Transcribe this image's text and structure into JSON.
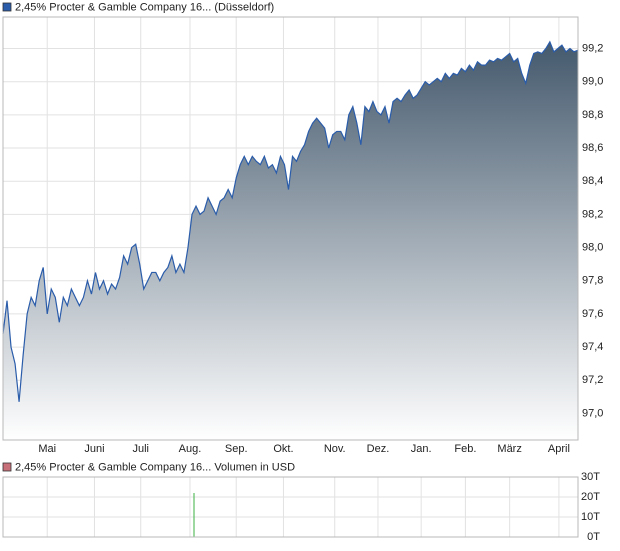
{
  "chart_data": [
    {
      "type": "area",
      "series": [
        {
          "name": "2,45% Procter & Gamble Company 16... (Düsseldorf)",
          "color": "#2a5caa",
          "values": [
            97.48,
            97.68,
            97.4,
            97.3,
            97.07,
            97.35,
            97.6,
            97.7,
            97.65,
            97.8,
            97.88,
            97.6,
            97.75,
            97.7,
            97.55,
            97.7,
            97.65,
            97.75,
            97.7,
            97.65,
            97.7,
            97.8,
            97.72,
            97.85,
            97.75,
            97.8,
            97.72,
            97.78,
            97.75,
            97.82,
            97.95,
            97.9,
            98.0,
            98.02,
            97.9,
            97.75,
            97.8,
            97.85,
            97.85,
            97.8,
            97.85,
            97.88,
            97.95,
            97.85,
            97.9,
            97.85,
            98.0,
            98.2,
            98.25,
            98.2,
            98.22,
            98.3,
            98.25,
            98.2,
            98.28,
            98.3,
            98.35,
            98.3,
            98.42,
            98.5,
            98.55,
            98.5,
            98.55,
            98.52,
            98.5,
            98.55,
            98.48,
            98.5,
            98.45,
            98.55,
            98.5,
            98.35,
            98.55,
            98.52,
            98.58,
            98.62,
            98.7,
            98.75,
            98.78,
            98.75,
            98.72,
            98.6,
            98.68,
            98.7,
            98.7,
            98.65,
            98.8,
            98.85,
            98.75,
            98.62,
            98.85,
            98.82,
            98.88,
            98.82,
            98.8,
            98.85,
            98.75,
            98.88,
            98.9,
            98.88,
            98.92,
            98.95,
            98.9,
            98.92,
            98.96,
            99.0,
            98.98,
            99.0,
            99.02,
            99.0,
            99.05,
            99.02,
            99.05,
            99.04,
            99.08,
            99.06,
            99.1,
            99.07,
            99.12,
            99.1,
            99.1,
            99.13,
            99.12,
            99.14,
            99.13,
            99.15,
            99.17,
            99.12,
            99.14,
            99.05,
            98.99,
            99.1,
            99.17,
            99.18,
            99.17,
            99.2,
            99.24,
            99.18,
            99.2,
            99.22,
            99.18,
            99.2,
            99.18,
            99.19
          ]
        }
      ],
      "xlim": [
        0,
        143
      ],
      "xticks": [
        {
          "value": 11,
          "label": "Mai"
        },
        {
          "value": 22.75,
          "label": "Juni"
        },
        {
          "value": 34.25,
          "label": "Juli"
        },
        {
          "value": 46.5,
          "label": "Aug."
        },
        {
          "value": 58,
          "label": "Sep."
        },
        {
          "value": 69.75,
          "label": "Okt."
        },
        {
          "value": 82.5,
          "label": "Nov."
        },
        {
          "value": 93.25,
          "label": "Dez."
        },
        {
          "value": 104,
          "label": "Jan."
        },
        {
          "value": 115,
          "label": "Feb."
        },
        {
          "value": 126,
          "label": "März"
        },
        {
          "value": 138.25,
          "label": "April"
        }
      ],
      "ylim": [
        96.84,
        99.39
      ],
      "yticks": [
        {
          "value": 97.0,
          "label": "97,0"
        },
        {
          "value": 97.2,
          "label": "97,2"
        },
        {
          "value": 97.4,
          "label": "97,4"
        },
        {
          "value": 97.6,
          "label": "97,6"
        },
        {
          "value": 97.8,
          "label": "97,8"
        },
        {
          "value": 98.0,
          "label": "98,0"
        },
        {
          "value": 98.2,
          "label": "98,2"
        },
        {
          "value": 98.4,
          "label": "98,4"
        },
        {
          "value": 98.6,
          "label": "98,6"
        },
        {
          "value": 98.8,
          "label": "98,8"
        },
        {
          "value": 99.0,
          "label": "99,0"
        },
        {
          "value": 99.2,
          "label": "99,2"
        }
      ],
      "grid": true
    },
    {
      "type": "bar",
      "series": [
        {
          "name": "2,45% Procter & Gamble Company 16... Volumen in USD",
          "color": "#3cb043",
          "legend_color": "#c8707a",
          "values": [
            22
          ]
        }
      ],
      "x": [
        47.5
      ],
      "xlim": [
        0,
        143
      ],
      "ylim": [
        0,
        30
      ],
      "yticks": [
        {
          "value": 0,
          "label": "0T"
        },
        {
          "value": 10,
          "label": "10T"
        },
        {
          "value": 20,
          "label": "20T"
        },
        {
          "value": 30,
          "label": "30T"
        }
      ],
      "grid": true
    }
  ]
}
